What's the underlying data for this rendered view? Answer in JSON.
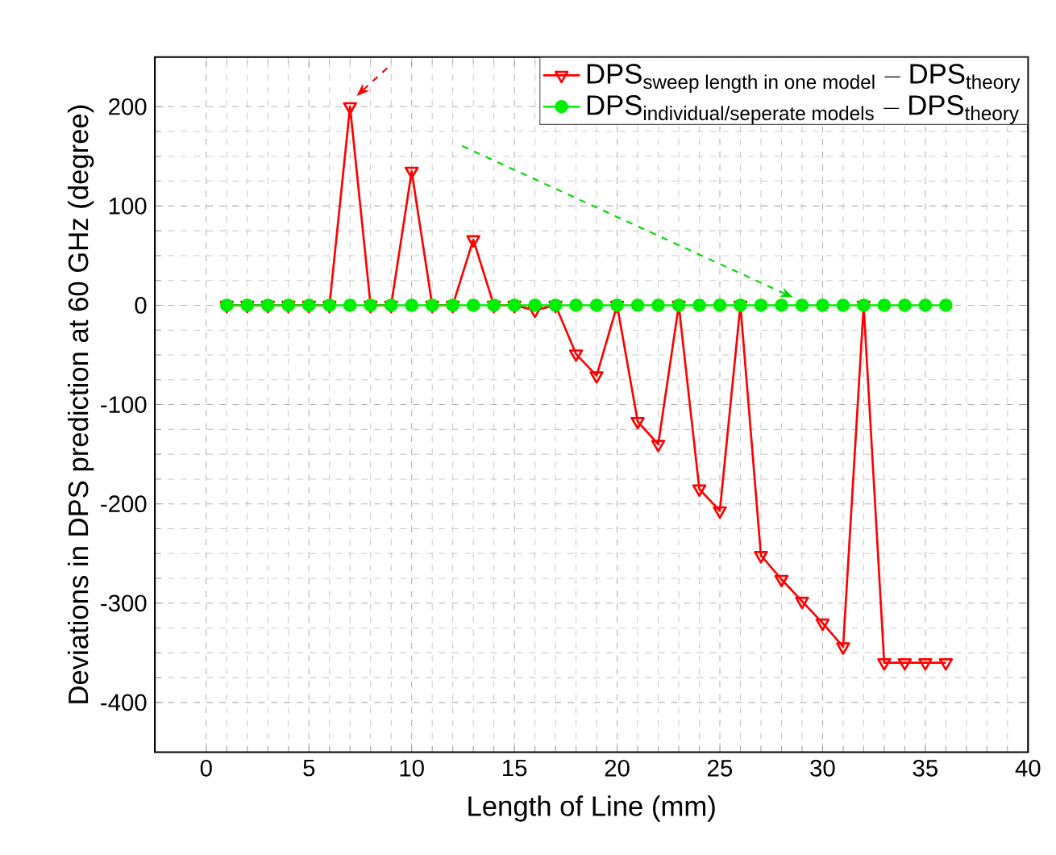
{
  "chart_data": {
    "type": "line",
    "xlabel": "Length of Line (mm)",
    "ylabel": "Deviations in DPS prediction at 60 GHz (degree)",
    "x": [
      1,
      2,
      3,
      4,
      5,
      6,
      7,
      8,
      9,
      10,
      11,
      12,
      13,
      14,
      15,
      16,
      17,
      18,
      19,
      20,
      21,
      22,
      23,
      24,
      25,
      26,
      27,
      28,
      29,
      30,
      31,
      32,
      33,
      34,
      35,
      36
    ],
    "series": [
      {
        "name": "\\text{DPS}_{\\text{sweep length in one model}} - \\text{DPS}_{\\text{theory}}",
        "color": "#ff0000",
        "marker": "triangle",
        "values": [
          0,
          0,
          0,
          0,
          0,
          0,
          200,
          0,
          0,
          135,
          0,
          0,
          66,
          0,
          0,
          -5,
          0,
          -49,
          -71,
          0,
          -117,
          -140,
          0,
          -185,
          -207,
          0,
          -252,
          -276,
          -298,
          -320,
          -344,
          0,
          -360,
          -360,
          -360,
          -360
        ]
      },
      {
        "name": "\\text{DPS}_{\\text{individual/seperate models}} - \\text{DPS}_{\\text{theory}}",
        "color": "#00ee00",
        "marker": "circle",
        "values": [
          0,
          0,
          0,
          0,
          0,
          0,
          0,
          0,
          0,
          0,
          0,
          0,
          0,
          0,
          0,
          0,
          0,
          0,
          0,
          0,
          0,
          0,
          0,
          0,
          0,
          0,
          0,
          0,
          0,
          0,
          0,
          0,
          0,
          0,
          0,
          0
        ]
      }
    ],
    "xlim": [
      -2.5,
      40
    ],
    "ylim": [
      -450,
      250
    ],
    "xticks": [
      0,
      5,
      10,
      15,
      20,
      25,
      30,
      35,
      40
    ],
    "yticks": [
      -400,
      -300,
      -200,
      -100,
      0,
      100,
      200
    ],
    "grid": true,
    "legend": "top right",
    "line_style": "solid"
  }
}
